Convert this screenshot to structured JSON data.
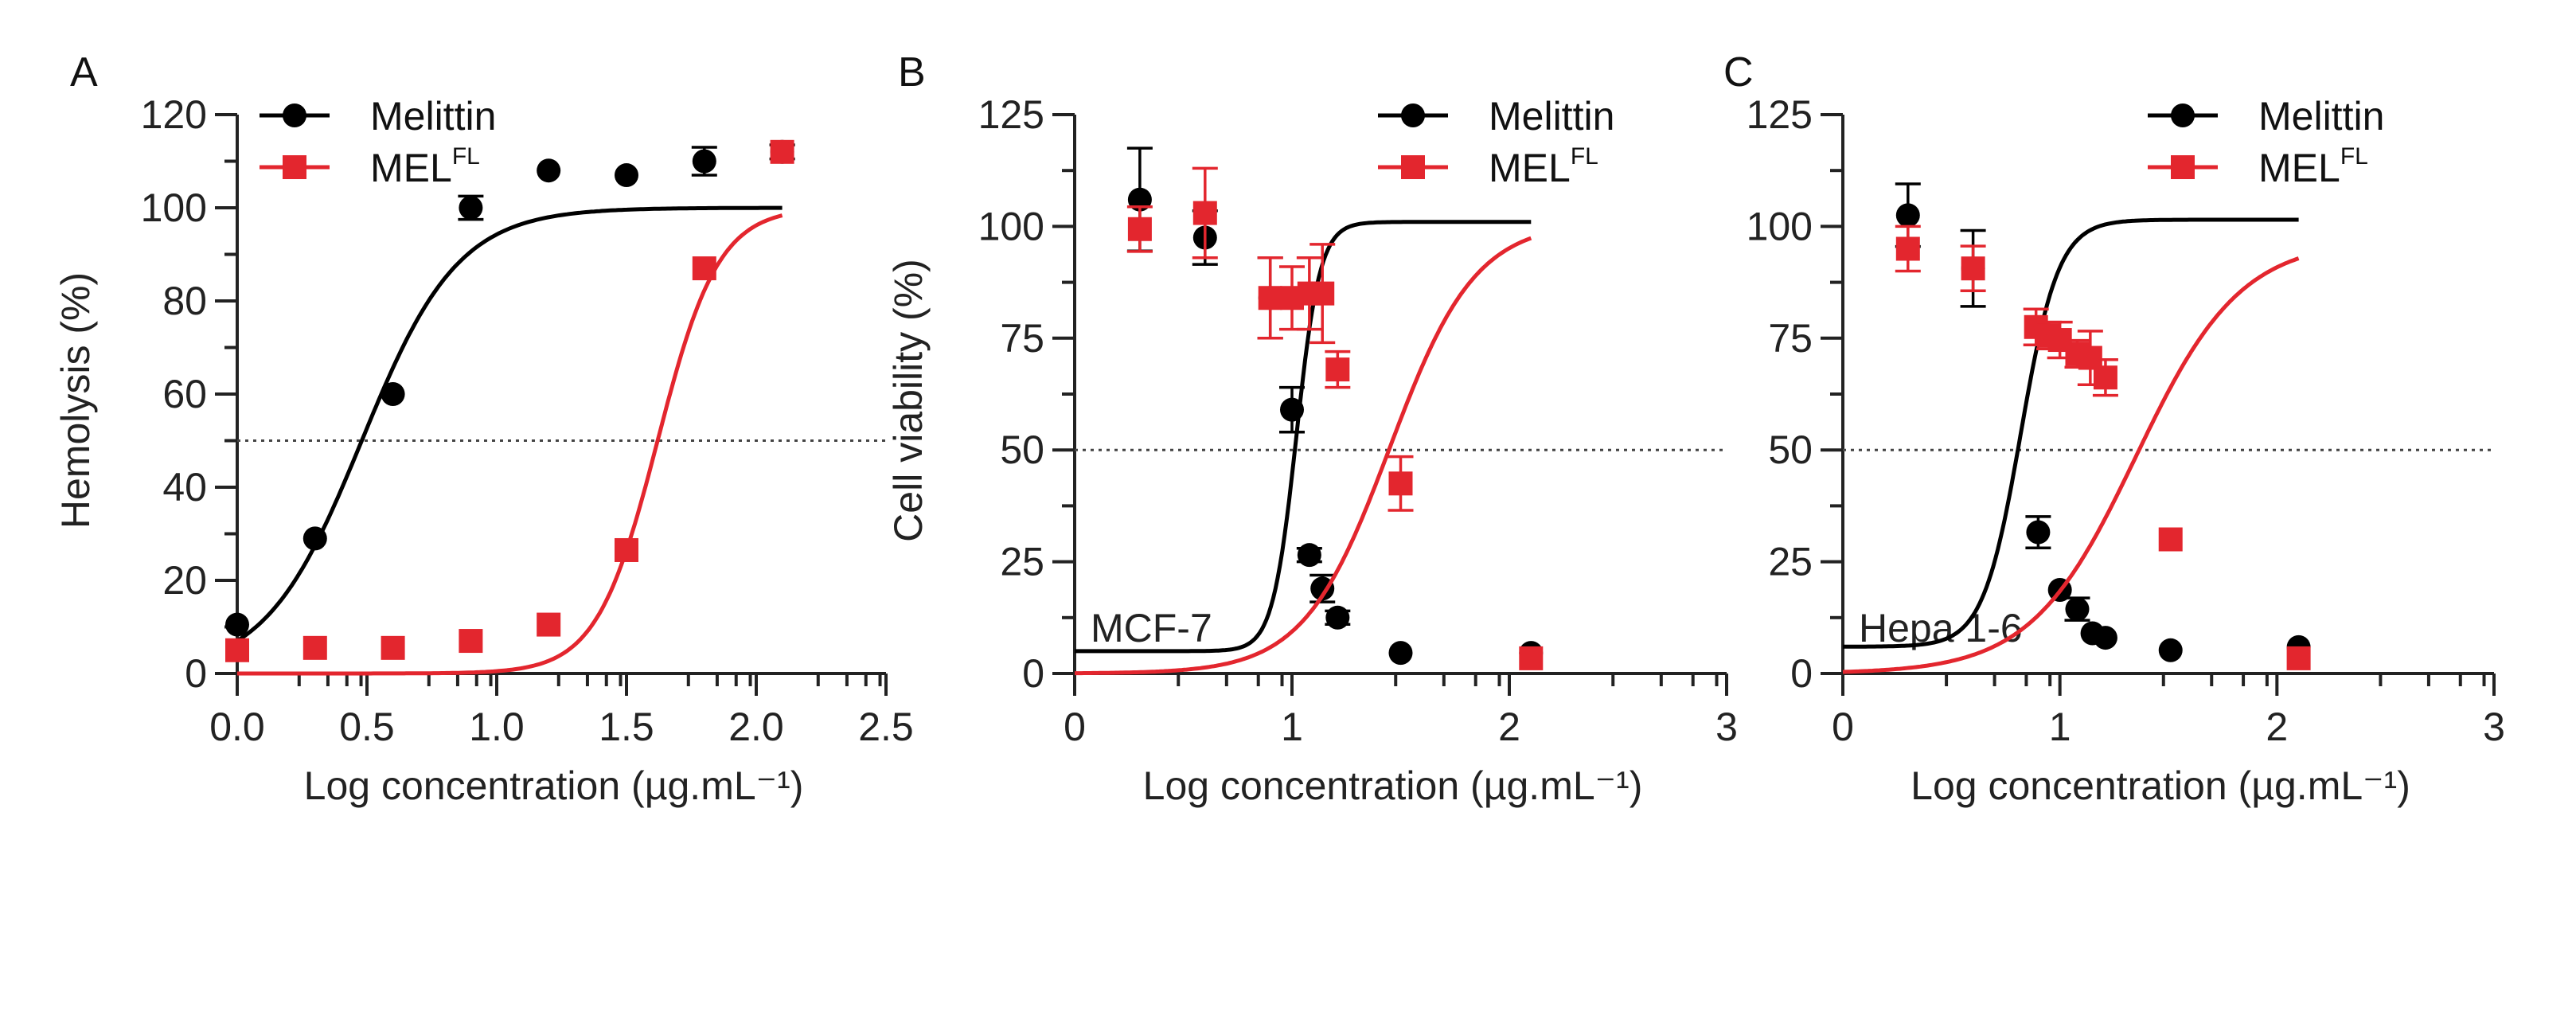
{
  "colors": {
    "melittin": "#000000",
    "melfl": "#e3262e",
    "axis": "#222222",
    "reference": "#444444"
  },
  "legend": {
    "melittin": "Melittin",
    "melfl_base": "MEL",
    "melfl_sup": "FL"
  },
  "chart_data": [
    {
      "panel": "A",
      "type": "scatter",
      "title": "",
      "xlabel": "Log concentration (µg.mL⁻¹)",
      "ylabel": "Hemolysis (%)",
      "xlim": [
        0,
        2.5
      ],
      "ylim": [
        0,
        120
      ],
      "xticks": [
        0,
        0.5,
        1.0,
        1.5,
        2.0,
        2.5
      ],
      "xtick_labels": [
        "0.0",
        "0.5",
        "1.0",
        "1.5",
        "2.0",
        "2.5"
      ],
      "yticks": [
        0,
        20,
        40,
        60,
        80,
        100,
        120
      ],
      "ytick_labels": [
        "0",
        "20",
        "40",
        "60",
        "80",
        "100",
        "120"
      ],
      "reference_line": 50,
      "cell_label": "",
      "legend_position": "top-left",
      "series": [
        {
          "name": "Melittin",
          "marker": "circle",
          "x": [
            0,
            0.3,
            0.6,
            0.9,
            1.2,
            1.5,
            1.8,
            2.1
          ],
          "y": [
            10.5,
            29,
            60,
            100,
            108,
            107,
            110,
            112
          ],
          "err": [
            1,
            1,
            1,
            2.5,
            1,
            1,
            3,
            1.5
          ],
          "fit": {
            "bottom": 0,
            "top": 100,
            "logEC50": 0.48,
            "hill": 2.34,
            "range": [
              0,
              2.1
            ]
          }
        },
        {
          "name": "MELFL",
          "marker": "square",
          "x": [
            0,
            0.3,
            0.6,
            0.9,
            1.2,
            1.5,
            1.8,
            2.1
          ],
          "y": [
            5,
            5.5,
            5.5,
            7,
            10.5,
            26.5,
            87,
            112
          ],
          "err": [
            0.5,
            0.5,
            0.5,
            0.5,
            0.5,
            1,
            1,
            1
          ],
          "fit": {
            "bottom": 0,
            "top": 100,
            "logEC50": 1.62,
            "hill": 3.7,
            "range": [
              0,
              2.1
            ]
          }
        }
      ]
    },
    {
      "panel": "B",
      "type": "scatter",
      "title": "",
      "xlabel": "Log concentration (µg.mL⁻¹)",
      "ylabel": "Cell viability (%)",
      "xlim": [
        0,
        3
      ],
      "ylim": [
        0,
        125
      ],
      "xticks": [
        0,
        1,
        2,
        3
      ],
      "xtick_labels": [
        "0",
        "1",
        "2",
        "3"
      ],
      "yticks": [
        0,
        25,
        50,
        75,
        100,
        125
      ],
      "ytick_labels": [
        "0",
        "25",
        "50",
        "75",
        "100",
        "125"
      ],
      "reference_line": 50,
      "cell_label": "MCF-7",
      "legend_position": "top-right",
      "series": [
        {
          "name": "Melittin",
          "marker": "circle",
          "x": [
            0.3,
            0.6,
            0.9,
            1.0,
            1.08,
            1.14,
            1.21,
            1.5,
            2.1
          ],
          "y": [
            106,
            97.5,
            84,
            59,
            26.5,
            19,
            12.5,
            4.6,
            4.6
          ],
          "err": [
            11.5,
            6,
            9,
            5,
            1.5,
            3,
            1.5,
            0.5,
            0.5
          ],
          "fit": {
            "bottom": 5,
            "top": 101,
            "logEC50": 1.02,
            "hill": 8,
            "range": [
              0,
              2.1
            ]
          }
        },
        {
          "name": "MELFL",
          "marker": "square",
          "x": [
            0.3,
            0.6,
            0.9,
            1.0,
            1.08,
            1.14,
            1.21,
            1.5,
            2.1
          ],
          "y": [
            99.4,
            103,
            84,
            84,
            85,
            85,
            68,
            42.5,
            3.4
          ],
          "err": [
            5,
            10,
            9,
            7,
            8,
            11,
            4,
            6,
            0.5
          ],
          "fit": {
            "bottom": 0,
            "top": 101,
            "logEC50": 1.45,
            "hill": 2.2,
            "range": [
              0,
              2.1
            ]
          }
        }
      ]
    },
    {
      "panel": "C",
      "type": "scatter",
      "title": "",
      "xlabel": "Log concentration (µg.mL⁻¹)",
      "ylabel": "",
      "xlim": [
        0,
        3
      ],
      "ylim": [
        0,
        125
      ],
      "xticks": [
        0,
        1,
        2,
        3
      ],
      "xtick_labels": [
        "0",
        "1",
        "2",
        "3"
      ],
      "yticks": [
        0,
        25,
        50,
        75,
        100,
        125
      ],
      "ytick_labels": [
        "0",
        "25",
        "50",
        "75",
        "100",
        "125"
      ],
      "reference_line": 50,
      "cell_label": "Hepa 1-6",
      "legend_position": "top-right",
      "series": [
        {
          "name": "Melittin",
          "marker": "circle",
          "x": [
            0.3,
            0.6,
            0.9,
            1.0,
            1.08,
            1.15,
            1.21,
            1.51,
            2.1
          ],
          "y": [
            102.5,
            90.6,
            31.6,
            18.7,
            14.4,
            9,
            8,
            5.2,
            5.9
          ],
          "err": [
            7,
            8.5,
            3.5,
            1,
            2.5,
            1,
            1,
            0.5,
            0.5
          ],
          "fit": {
            "bottom": 6,
            "top": 101.5,
            "logEC50": 0.82,
            "hill": 5,
            "range": [
              0,
              2.1
            ]
          }
        },
        {
          "name": "MELFL",
          "marker": "square",
          "x": [
            0.3,
            0.6,
            0.89,
            0.95,
            1.0,
            1.08,
            1.14,
            1.21,
            1.51,
            2.1
          ],
          "y": [
            95,
            90.6,
            77.5,
            75.6,
            74.6,
            71.5,
            70.6,
            66.2,
            30,
            3.4
          ],
          "err": [
            5,
            5,
            4,
            3,
            4,
            3,
            6,
            4,
            1,
            0.5
          ],
          "fit": {
            "bottom": 0,
            "top": 97,
            "logEC50": 1.35,
            "hill": 1.8,
            "range": [
              0,
              2.1
            ]
          }
        }
      ]
    }
  ]
}
